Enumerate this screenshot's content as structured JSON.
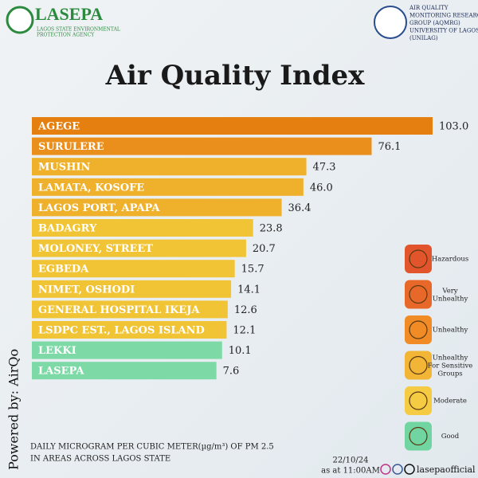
{
  "header": {
    "org_name": "LASEPA",
    "org_lines": [
      "LAGOS STATE ENVIRONMENTAL",
      "PROTECTION AGENCY"
    ],
    "partner_lines": [
      "AIR QUALITY",
      "MONITORING RESEARCH",
      "GROUP (AQMRG)",
      "UNIVERSITY OF LAGOS",
      "(UNILAG)"
    ]
  },
  "chart_data": {
    "type": "bar",
    "orientation": "horizontal",
    "title": "Air Quality Index",
    "categories": [
      "AGEGE",
      "SURULERE",
      "MUSHIN",
      "LAMATA, KOSOFE",
      "LAGOS PORT, APAPA",
      "BADAGRY",
      "MOLONEY, STREET",
      "EGBEDA",
      "NIMET, OSHODI",
      "GENERAL HOSPITAL IKEJA",
      "LSDPC EST., LAGOS ISLAND",
      "LEKKI",
      "LASEPA"
    ],
    "values": [
      103.0,
      76.1,
      47.3,
      46.0,
      36.4,
      23.8,
      20.7,
      15.7,
      14.1,
      12.6,
      12.1,
      10.1,
      7.6
    ],
    "value_labels": [
      "103.0",
      "76.1",
      "47.3",
      "46.0",
      "36.4",
      "23.8",
      "20.7",
      "15.7",
      "14.1",
      "12.6",
      "12.1",
      "10.1",
      "7.6"
    ],
    "colors": [
      "#e57f10",
      "#eb8f1c",
      "#efb12c",
      "#efb12c",
      "#efb12c",
      "#f1c435",
      "#f1c435",
      "#f1c435",
      "#f1c435",
      "#f1c435",
      "#f1c435",
      "#7dd9a6",
      "#7dd9a6"
    ]
  },
  "legend": [
    {
      "label": "Hazardous",
      "color": "#e2542b"
    },
    {
      "label": "Very Unhealthy",
      "color": "#e8682a"
    },
    {
      "label": "Unhealthy",
      "color": "#f08b26"
    },
    {
      "label": "Unhealthy For Sensitive Groups",
      "color": "#f2b536"
    },
    {
      "label": "Moderate",
      "color": "#f4cb43"
    },
    {
      "label": "Good",
      "color": "#70d5a1"
    }
  ],
  "footer": {
    "powered_by": "Powered by: AirQo",
    "note_lines": [
      "DAILY MICROGRAM PER CUBIC METER(µg/m³) OF PM 2.5",
      "IN AREAS ACROSS LAGOS STATE"
    ],
    "date": "22/10/24",
    "time": "as at 11:00AM",
    "handle": "lasepaofficial"
  }
}
